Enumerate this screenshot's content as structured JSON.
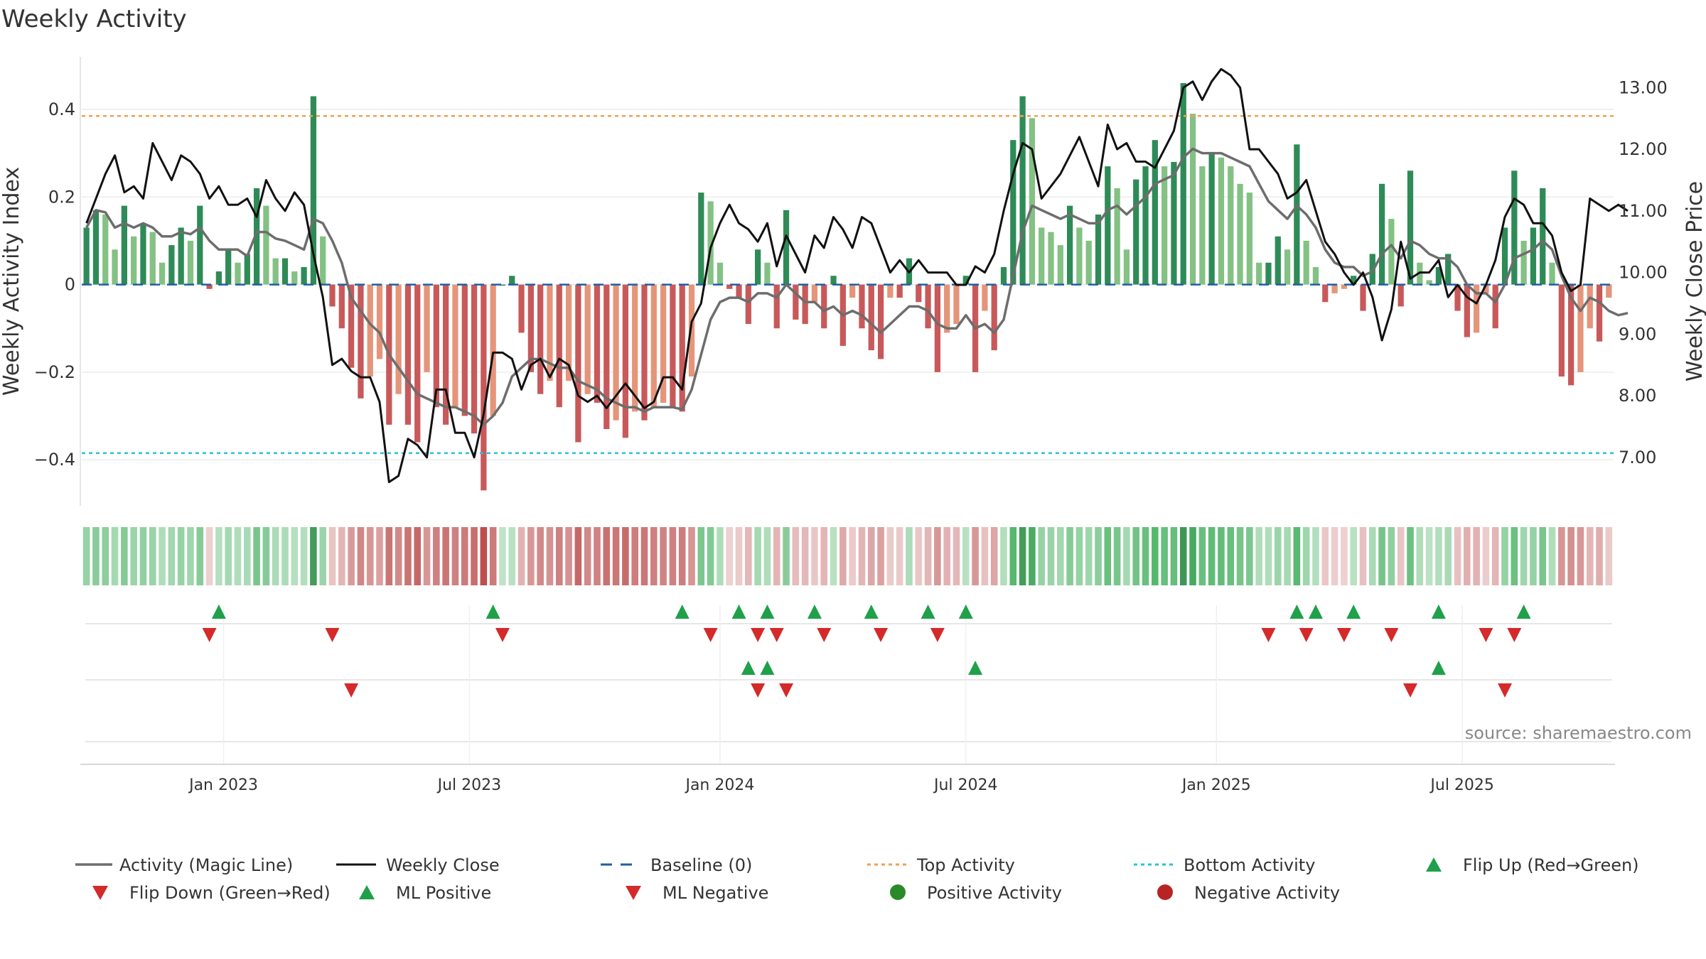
{
  "chart_data": {
    "type": "bar",
    "title": "Weekly Activity",
    "ylabel": "Weekly Activity Index",
    "y2label": "Weekly Close Price",
    "ylim": [
      -0.51,
      0.52
    ],
    "y2lim": [
      6.18,
      13.5
    ],
    "y_ticks": [
      {
        "v": 0.4,
        "label": "0.4"
      },
      {
        "v": 0.2,
        "label": "0.2"
      },
      {
        "v": 0,
        "label": "0"
      },
      {
        "v": -0.2,
        "label": "−0.2"
      },
      {
        "v": -0.4,
        "label": "−0.4"
      }
    ],
    "y2_ticks": [
      {
        "v": 13,
        "label": "13.00"
      },
      {
        "v": 12,
        "label": "12.00"
      },
      {
        "v": 11,
        "label": "11.00"
      },
      {
        "v": 10,
        "label": "10.00"
      },
      {
        "v": 9,
        "label": "9.00"
      },
      {
        "v": 8,
        "label": "8.00"
      },
      {
        "v": 7,
        "label": "7.00"
      }
    ],
    "x_ticks": [
      {
        "i": 14.5,
        "label": "Jan 2023"
      },
      {
        "i": 40.5,
        "label": "Jul 2023"
      },
      {
        "i": 67,
        "label": "Jan 2024"
      },
      {
        "i": 93,
        "label": "Jul 2024"
      },
      {
        "i": 119.5,
        "label": "Jan 2025"
      },
      {
        "i": 145.5,
        "label": "Jul 2025"
      }
    ],
    "grid": true,
    "top_activity": 0.385,
    "bottom_activity": -0.385,
    "source": "source: sharemaestro.com",
    "activity": [
      0.13,
      0.17,
      0.16,
      0.08,
      0.18,
      0.11,
      0.14,
      0.12,
      0.05,
      0.09,
      0.13,
      0.1,
      0.18,
      -0.01,
      0.03,
      0.08,
      0.05,
      0.07,
      0.22,
      0.18,
      0.06,
      0.06,
      0.03,
      0.04,
      0.43,
      0.11,
      -0.05,
      -0.1,
      -0.19,
      -0.26,
      -0.21,
      -0.17,
      -0.32,
      -0.25,
      -0.32,
      -0.36,
      -0.2,
      -0.28,
      -0.32,
      -0.28,
      -0.3,
      -0.34,
      -0.47,
      -0.3,
      0.0,
      0.02,
      -0.11,
      -0.2,
      -0.25,
      -0.22,
      -0.28,
      -0.22,
      -0.36,
      -0.25,
      -0.27,
      -0.33,
      -0.31,
      -0.35,
      -0.29,
      -0.31,
      -0.28,
      -0.27,
      -0.28,
      -0.29,
      -0.21,
      0.21,
      0.19,
      0.05,
      -0.01,
      -0.03,
      -0.09,
      0.08,
      0.05,
      -0.1,
      0.17,
      -0.08,
      -0.09,
      -0.04,
      -0.1,
      0.02,
      -0.14,
      -0.03,
      -0.1,
      -0.15,
      -0.17,
      -0.03,
      -0.03,
      0.06,
      -0.04,
      -0.1,
      -0.2,
      -0.11,
      -0.09,
      0.02,
      -0.2,
      -0.06,
      -0.15,
      0.04,
      0.33,
      0.43,
      0.38,
      0.13,
      0.12,
      0.09,
      0.18,
      0.13,
      0.1,
      0.16,
      0.27,
      0.22,
      0.08,
      0.24,
      0.27,
      0.33,
      0.27,
      0.28,
      0.46,
      0.39,
      0.27,
      0.3,
      0.29,
      0.27,
      0.23,
      0.21,
      0.05,
      0.05,
      0.11,
      0.08,
      0.32,
      0.1,
      0.04,
      -0.04,
      -0.02,
      -0.01,
      0.02,
      -0.06,
      0.07,
      0.23,
      0.15,
      -0.05,
      0.26,
      0.05,
      0.01,
      0.04,
      0.07,
      -0.06,
      -0.12,
      -0.11,
      -0.02,
      -0.1,
      0.13,
      0.26,
      0.1,
      0.13,
      0.22,
      0.05,
      -0.21,
      -0.23,
      -0.2,
      -0.1,
      -0.13,
      -0.03
    ],
    "magic_line": [
      0.13,
      0.17,
      0.165,
      0.13,
      0.14,
      0.13,
      0.14,
      0.13,
      0.11,
      0.11,
      0.12,
      0.115,
      0.13,
      0.1,
      0.08,
      0.08,
      0.08,
      0.065,
      0.12,
      0.12,
      0.105,
      0.1,
      0.09,
      0.08,
      0.15,
      0.14,
      0.1,
      0.05,
      -0.03,
      -0.06,
      -0.09,
      -0.11,
      -0.16,
      -0.19,
      -0.22,
      -0.25,
      -0.26,
      -0.27,
      -0.28,
      -0.28,
      -0.29,
      -0.3,
      -0.32,
      -0.3,
      -0.27,
      -0.21,
      -0.19,
      -0.17,
      -0.17,
      -0.18,
      -0.19,
      -0.19,
      -0.22,
      -0.23,
      -0.24,
      -0.26,
      -0.27,
      -0.28,
      -0.28,
      -0.29,
      -0.28,
      -0.28,
      -0.28,
      -0.285,
      -0.24,
      -0.16,
      -0.08,
      -0.04,
      -0.03,
      -0.03,
      -0.04,
      -0.02,
      -0.02,
      -0.03,
      0.0,
      -0.02,
      -0.04,
      -0.04,
      -0.06,
      -0.05,
      -0.07,
      -0.06,
      -0.07,
      -0.09,
      -0.11,
      -0.09,
      -0.07,
      -0.05,
      -0.05,
      -0.06,
      -0.09,
      -0.1,
      -0.1,
      -0.07,
      -0.1,
      -0.09,
      -0.11,
      -0.08,
      0.02,
      0.12,
      0.18,
      0.17,
      0.16,
      0.15,
      0.16,
      0.15,
      0.14,
      0.14,
      0.17,
      0.18,
      0.16,
      0.18,
      0.2,
      0.23,
      0.24,
      0.25,
      0.29,
      0.31,
      0.3,
      0.3,
      0.3,
      0.29,
      0.28,
      0.27,
      0.23,
      0.19,
      0.17,
      0.15,
      0.18,
      0.16,
      0.13,
      0.08,
      0.05,
      0.04,
      0.04,
      0.02,
      0.03,
      0.07,
      0.09,
      0.06,
      0.1,
      0.09,
      0.07,
      0.06,
      0.06,
      0.04,
      0.0,
      -0.02,
      -0.02,
      -0.04,
      0.0,
      0.06,
      0.07,
      0.08,
      0.1,
      0.08,
      0.02,
      -0.03,
      -0.06,
      -0.03,
      -0.04,
      -0.06,
      -0.07,
      -0.065
    ],
    "close": [
      10.8,
      11.2,
      11.6,
      11.9,
      11.3,
      11.4,
      11.2,
      12.1,
      11.8,
      11.5,
      11.9,
      11.8,
      11.6,
      11.2,
      11.4,
      11.1,
      11.1,
      11.2,
      10.9,
      11.5,
      11.2,
      11.0,
      11.3,
      11.1,
      10.3,
      9.6,
      8.5,
      8.6,
      8.4,
      8.3,
      8.3,
      7.9,
      6.6,
      6.7,
      7.3,
      7.2,
      7.0,
      8.1,
      8.1,
      7.4,
      7.4,
      7.0,
      7.7,
      8.7,
      8.7,
      8.6,
      8.1,
      8.5,
      8.6,
      8.3,
      8.6,
      8.5,
      8.0,
      7.9,
      8.0,
      7.8,
      8.0,
      8.2,
      8.0,
      7.8,
      7.9,
      8.3,
      8.3,
      8.1,
      9.2,
      9.5,
      10.4,
      10.8,
      11.1,
      10.8,
      10.7,
      10.5,
      10.8,
      10.1,
      10.6,
      10.3,
      10.0,
      10.6,
      10.4,
      10.9,
      10.7,
      10.4,
      10.9,
      10.8,
      10.4,
      10.0,
      10.2,
      10.0,
      10.2,
      10.0,
      10.0,
      10.0,
      9.8,
      9.8,
      10.1,
      10.0,
      10.3,
      11.0,
      11.6,
      12.1,
      12.0,
      11.2,
      11.4,
      11.6,
      11.9,
      12.2,
      11.8,
      11.4,
      12.4,
      12.0,
      12.1,
      11.8,
      11.8,
      11.7,
      12.0,
      12.3,
      13.0,
      13.1,
      12.8,
      13.1,
      13.3,
      13.2,
      13.0,
      12.0,
      12.0,
      11.8,
      11.6,
      11.2,
      11.3,
      11.5,
      11.0,
      10.5,
      10.3,
      10.0,
      9.8,
      10.0,
      9.6,
      8.9,
      9.4,
      10.5,
      9.9,
      10.0,
      10.0,
      10.2,
      9.6,
      9.8,
      9.6,
      9.5,
      9.8,
      10.2,
      10.9,
      11.2,
      11.1,
      10.8,
      10.8,
      10.6,
      10.0,
      9.7,
      9.8,
      11.2,
      11.1,
      11.0,
      11.1,
      11.0
    ]
  },
  "legend": [
    {
      "key": "magic_line",
      "label": "Activity (Magic Line)"
    },
    {
      "key": "close",
      "label": "Weekly Close"
    },
    {
      "key": "baseline",
      "label": "Baseline (0)"
    },
    {
      "key": "top",
      "label": "Top Activity"
    },
    {
      "key": "bottom",
      "label": "Bottom Activity"
    },
    {
      "key": "flip_up",
      "label": "Flip Up (Red→Green)"
    },
    {
      "key": "flip_down",
      "label": "Flip Down (Green→Red)"
    },
    {
      "key": "ml_pos",
      "label": "ML Positive"
    },
    {
      "key": "ml_neg",
      "label": "ML Negative"
    },
    {
      "key": "pos_act",
      "label": "Positive Activity"
    },
    {
      "key": "neg_act",
      "label": "Negative Activity"
    }
  ],
  "colors": {
    "pos_strong": "#2e8b57",
    "pos_light": "#84c184",
    "neg_strong": "#c8595a",
    "neg_light": "#e5957a",
    "magic_line": "#6d6d6d",
    "close": "#111111",
    "baseline": "#1f5f9f",
    "top": "#f0a050",
    "bottom": "#22c4d8",
    "marker_up": "#1fa04a",
    "marker_down": "#d42a2a",
    "pos_dot": "#2a8a2a",
    "neg_dot": "#b82424"
  },
  "flip_up_idx": [
    14,
    43,
    63,
    69,
    72,
    77,
    83,
    89,
    93,
    128,
    130,
    134,
    143,
    152
  ],
  "flip_down_idx": [
    13,
    26,
    44,
    66,
    71,
    73,
    78,
    84,
    90,
    125,
    129,
    133,
    138,
    148,
    151
  ],
  "ml_pos_idx": [
    70,
    72,
    94,
    143
  ],
  "ml_neg_idx": [
    28,
    71,
    74,
    140,
    150
  ]
}
